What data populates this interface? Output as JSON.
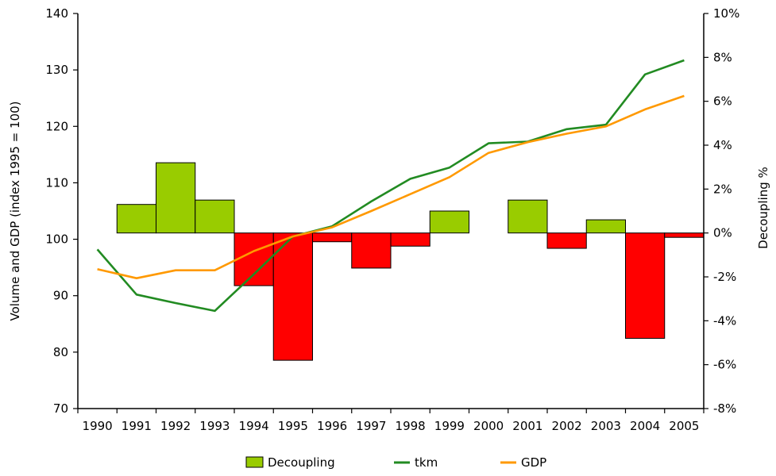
{
  "chart_data": {
    "type": "bar+line",
    "title": "",
    "categories": [
      "1990",
      "1991",
      "1992",
      "1993",
      "1994",
      "1995",
      "1996",
      "1997",
      "1998",
      "1999",
      "2000",
      "2001",
      "2002",
      "2003",
      "2004",
      "2005"
    ],
    "left_axis": {
      "label": "Volume and GDP (index 1995 = 100)",
      "ylim": [
        70,
        140
      ],
      "ticks": [
        70,
        80,
        90,
        100,
        110,
        120,
        130,
        140
      ],
      "tick_labels": [
        "70",
        "80",
        "90",
        "100",
        "110",
        "120",
        "130",
        "140"
      ]
    },
    "right_axis": {
      "label": "Decoupling %",
      "ylim": [
        -8,
        10
      ],
      "ticks": [
        -8,
        -6,
        -4,
        -2,
        0,
        2,
        4,
        6,
        8,
        10
      ],
      "tick_labels": [
        "-8%",
        "-6%",
        "-4%",
        "-2%",
        "0%",
        "2%",
        "4%",
        "6%",
        "8%",
        "10%"
      ]
    },
    "series": [
      {
        "name": "Decoupling",
        "kind": "bar",
        "axis": "right",
        "positive_color": "#99cc00",
        "negative_color": "#ff0000",
        "values": [
          null,
          1.3,
          3.2,
          1.5,
          -2.4,
          -5.8,
          -0.4,
          -1.6,
          -0.6,
          1.0,
          null,
          1.5,
          -0.7,
          0.6,
          -4.8,
          -0.2
        ]
      },
      {
        "name": "tkm",
        "kind": "line",
        "axis": "left",
        "color": "#228b22",
        "values": [
          98.2,
          90.2,
          88.7,
          87.3,
          93.8,
          100.5,
          102.3,
          106.7,
          110.7,
          112.7,
          117.0,
          117.3,
          119.5,
          120.3,
          129.2,
          131.7
        ]
      },
      {
        "name": "GDP",
        "kind": "line",
        "axis": "left",
        "color": "#ff9900",
        "values": [
          94.7,
          93.1,
          94.5,
          94.5,
          97.9,
          100.5,
          102.1,
          105.0,
          108.0,
          111.0,
          115.3,
          117.2,
          118.7,
          120.0,
          123.0,
          125.4
        ]
      }
    ],
    "legend": {
      "position": "bottom",
      "items": [
        "Decoupling",
        "tkm",
        "GDP"
      ]
    }
  }
}
